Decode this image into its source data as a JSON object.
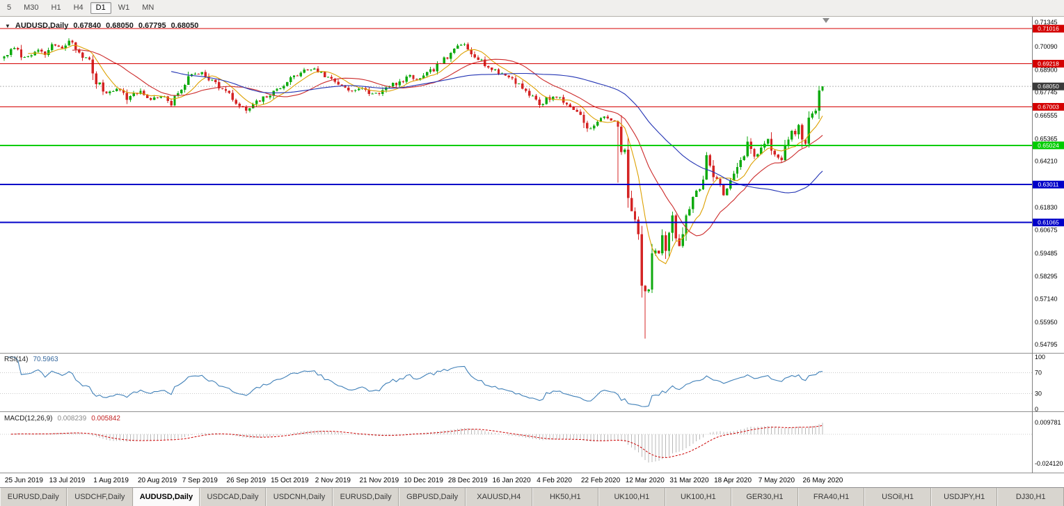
{
  "toolbar": {
    "buttons": [
      {
        "label": "5"
      },
      {
        "label": "M30"
      },
      {
        "label": "H1"
      },
      {
        "label": "H4"
      },
      {
        "label": "D1",
        "active": true
      },
      {
        "label": "W1"
      },
      {
        "label": "MN"
      }
    ]
  },
  "chart_header": {
    "symbol_label": "AUDUSD,Daily",
    "open": "0.67840",
    "high": "0.68050",
    "low": "0.67795",
    "close": "0.68050"
  },
  "price_axis": {
    "labels": [
      "0.71345",
      "0.70090",
      "0.68900",
      "0.67745",
      "0.66555",
      "0.65365",
      "0.64210",
      "0.61830",
      "0.60675",
      "0.59485",
      "0.58295",
      "0.57140",
      "0.55950",
      "0.54795"
    ]
  },
  "hlines": [
    {
      "price": 0.71016,
      "label": "0.71016",
      "color": "#d40000",
      "width": 1
    },
    {
      "price": 0.69218,
      "label": "0.69218",
      "color": "#d40000",
      "width": 1
    },
    {
      "price": 0.67003,
      "label": "0.67003",
      "color": "#d40000",
      "width": 1
    },
    {
      "price": 0.65024,
      "label": "0.65024",
      "color": "#00cc00",
      "width": 2
    },
    {
      "price": 0.63011,
      "label": "0.63011",
      "color": "#0000c8",
      "width": 2
    },
    {
      "price": 0.61065,
      "label": "0.61065",
      "color": "#0000c8",
      "width": 2
    }
  ],
  "current_price": {
    "value": 0.6805,
    "label": "0.68050",
    "badge_color": "#3a3a3a"
  },
  "rsi": {
    "name": "RSI(14)",
    "value": "70.5963",
    "line_color": "#4080b8",
    "axis_labels": [
      {
        "label": "100",
        "value": 100
      },
      {
        "label": "70",
        "value": 70
      },
      {
        "label": "30",
        "value": 30
      },
      {
        "label": "0",
        "value": 0
      }
    ],
    "level_lines": [
      70,
      30
    ]
  },
  "macd": {
    "name": "MACD(12,26,9)",
    "main_value": "0.008239",
    "signal_value": "0.005842",
    "axis_labels": [
      {
        "label": "0.009781",
        "value": 0.009781
      },
      {
        "label": "-0.024120",
        "value": -0.02412
      }
    ],
    "histogram_color": "#b8b8b8",
    "signal_color": "#cc0000"
  },
  "x_axis": {
    "labels": [
      {
        "text": "25 Jun 2019",
        "index": 1
      },
      {
        "text": "13 Jul 2019",
        "index": 14
      },
      {
        "text": "1 Aug 2019",
        "index": 27
      },
      {
        "text": "20 Aug 2019",
        "index": 40
      },
      {
        "text": "7 Sep 2019",
        "index": 53
      },
      {
        "text": "26 Sep 2019",
        "index": 66
      },
      {
        "text": "15 Oct 2019",
        "index": 79
      },
      {
        "text": "2 Nov 2019",
        "index": 92
      },
      {
        "text": "21 Nov 2019",
        "index": 105
      },
      {
        "text": "10 Dec 2019",
        "index": 118
      },
      {
        "text": "28 Dec 2019",
        "index": 131
      },
      {
        "text": "16 Jan 2020",
        "index": 144
      },
      {
        "text": "4 Feb 2020",
        "index": 157
      },
      {
        "text": "22 Feb 2020",
        "index": 170
      },
      {
        "text": "12 Mar 2020",
        "index": 183
      },
      {
        "text": "31 Mar 2020",
        "index": 196
      },
      {
        "text": "18 Apr 2020",
        "index": 209
      },
      {
        "text": "7 May 2020",
        "index": 222
      },
      {
        "text": "26 May 2020",
        "index": 235
      }
    ]
  },
  "tabs": {
    "items": [
      {
        "label": "EURUSD,Daily"
      },
      {
        "label": "USDCHF,Daily"
      },
      {
        "label": "AUDUSD,Daily",
        "active": true
      },
      {
        "label": "USDCAD,Daily"
      },
      {
        "label": "USDCNH,Daily"
      },
      {
        "label": "EURUSD,Daily"
      },
      {
        "label": "GBPUSD,Daily"
      },
      {
        "label": "XAUUSD,H4"
      },
      {
        "label": "HK50,H1"
      },
      {
        "label": "UK100,H1"
      },
      {
        "label": "UK100,H1"
      },
      {
        "label": "GER30,H1"
      },
      {
        "label": "FRA40,H1"
      },
      {
        "label": "USOil,H1"
      },
      {
        "label": "USDJPY,H1"
      },
      {
        "label": "DJ30,H1"
      }
    ]
  },
  "chart_data": {
    "type": "candlestick",
    "symbol": "AUDUSD",
    "timeframe": "Daily",
    "approximated": true,
    "ylim": [
      0.5437,
      0.7163
    ],
    "n_candles": 241,
    "noise_seed": 7,
    "colors": {
      "up": "#0faa0f",
      "down": "#d42424",
      "ma_fast": "#dda000",
      "ma_mid": "#cc2a2a",
      "ma_slow": "#2334b4"
    },
    "ma_periods": {
      "fast": 8,
      "mid": 21,
      "slow": 50
    },
    "waypoints": [
      [
        0,
        0.696
      ],
      [
        3,
        0.7
      ],
      [
        6,
        0.695
      ],
      [
        9,
        0.699
      ],
      [
        12,
        0.6965
      ],
      [
        14,
        0.702
      ],
      [
        17,
        0.6995
      ],
      [
        19,
        0.704
      ],
      [
        22,
        0.698
      ],
      [
        25,
        0.693
      ],
      [
        27,
        0.683
      ],
      [
        30,
        0.677
      ],
      [
        33,
        0.68
      ],
      [
        36,
        0.6745
      ],
      [
        40,
        0.678
      ],
      [
        43,
        0.6735
      ],
      [
        46,
        0.676
      ],
      [
        49,
        0.671
      ],
      [
        52,
        0.68
      ],
      [
        55,
        0.6865
      ],
      [
        58,
        0.688
      ],
      [
        61,
        0.6835
      ],
      [
        64,
        0.679
      ],
      [
        66,
        0.676
      ],
      [
        69,
        0.67
      ],
      [
        71,
        0.668
      ],
      [
        74,
        0.672
      ],
      [
        77,
        0.6755
      ],
      [
        79,
        0.677
      ],
      [
        82,
        0.682
      ],
      [
        85,
        0.6855
      ],
      [
        88,
        0.6885
      ],
      [
        91,
        0.69
      ],
      [
        93,
        0.687
      ],
      [
        96,
        0.684
      ],
      [
        99,
        0.681
      ],
      [
        102,
        0.6785
      ],
      [
        105,
        0.679
      ],
      [
        108,
        0.6765
      ],
      [
        111,
        0.678
      ],
      [
        114,
        0.6815
      ],
      [
        117,
        0.683
      ],
      [
        119,
        0.6855
      ],
      [
        122,
        0.684
      ],
      [
        125,
        0.688
      ],
      [
        128,
        0.693
      ],
      [
        131,
        0.6965
      ],
      [
        133,
        0.701
      ],
      [
        135,
        0.7025
      ],
      [
        137,
        0.6985
      ],
      [
        140,
        0.6935
      ],
      [
        143,
        0.689
      ],
      [
        146,
        0.687
      ],
      [
        149,
        0.6845
      ],
      [
        152,
        0.68
      ],
      [
        155,
        0.675
      ],
      [
        157,
        0.671
      ],
      [
        159,
        0.674
      ],
      [
        162,
        0.6755
      ],
      [
        165,
        0.671
      ],
      [
        168,
        0.668
      ],
      [
        170,
        0.6625
      ],
      [
        172,
        0.6585
      ],
      [
        174,
        0.662
      ],
      [
        176,
        0.665
      ],
      [
        178,
        0.664
      ],
      [
        180,
        0.658
      ],
      [
        181,
        0.649
      ],
      [
        182,
        0.65
      ],
      [
        183,
        0.623
      ],
      [
        184,
        0.619
      ],
      [
        185,
        0.612
      ],
      [
        186,
        0.599
      ],
      [
        187,
        0.579
      ],
      [
        188,
        0.5745
      ],
      [
        189,
        0.58
      ],
      [
        190,
        0.591
      ],
      [
        191,
        0.597
      ],
      [
        192,
        0.595
      ],
      [
        193,
        0.603
      ],
      [
        194,
        0.597
      ],
      [
        195,
        0.608
      ],
      [
        196,
        0.613
      ],
      [
        197,
        0.605
      ],
      [
        198,
        0.599
      ],
      [
        199,
        0.608
      ],
      [
        200,
        0.614
      ],
      [
        201,
        0.619
      ],
      [
        202,
        0.623
      ],
      [
        204,
        0.628
      ],
      [
        206,
        0.644
      ],
      [
        208,
        0.636
      ],
      [
        209,
        0.633
      ],
      [
        211,
        0.625
      ],
      [
        213,
        0.632
      ],
      [
        215,
        0.637
      ],
      [
        217,
        0.647
      ],
      [
        218,
        0.6535
      ],
      [
        219,
        0.65
      ],
      [
        220,
        0.643
      ],
      [
        222,
        0.648
      ],
      [
        224,
        0.653
      ],
      [
        226,
        0.645
      ],
      [
        228,
        0.644
      ],
      [
        230,
        0.653
      ],
      [
        231,
        0.658
      ],
      [
        232,
        0.655
      ],
      [
        233,
        0.66
      ],
      [
        234,
        0.653
      ],
      [
        235,
        0.654
      ],
      [
        236,
        0.665
      ],
      [
        237,
        0.666
      ],
      [
        238,
        0.6655
      ],
      [
        239,
        0.6784
      ],
      [
        240,
        0.6805
      ]
    ],
    "wick_overrides": [
      {
        "i": 180,
        "low": 0.631
      },
      {
        "i": 188,
        "low": 0.551
      }
    ],
    "last_candle": {
      "o": 0.6784,
      "h": 0.6805,
      "l": 0.67795,
      "c": 0.6805
    }
  }
}
